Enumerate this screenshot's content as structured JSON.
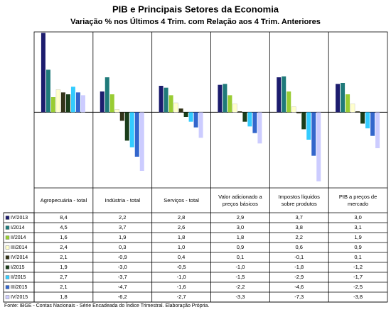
{
  "chart_data": {
    "type": "bar",
    "title": "PIB e Principais Setores da Economia",
    "subtitle": "Variação % nos Últimos 4 Trim. com Relação aos  4 Trim. Anteriores",
    "source": "Fonte: IBGE - Contas Nacionais - Série Encadeada do Índice Trimestral. Elaboração Própria.",
    "categories": [
      "Agropecuária - total",
      "Indústria - total",
      "Serviços - total",
      "Valor adicionado a preços básicos",
      "Impostos líquidos sobre produtos",
      "PIB a preços de mercado"
    ],
    "ylim": [
      -8,
      8.5
    ],
    "series": [
      {
        "name": "IV/2013",
        "color": "#1c1c6e",
        "values": [
          8.4,
          2.2,
          2.8,
          2.9,
          3.7,
          3.0
        ],
        "value_labels": [
          "8,4",
          "2,2",
          "2,8",
          "2,9",
          "3,7",
          "3,0"
        ]
      },
      {
        "name": "I/2014",
        "color": "#1f7a7a",
        "values": [
          4.5,
          3.7,
          2.6,
          3.0,
          3.8,
          3.1
        ],
        "value_labels": [
          "4,5",
          "3,7",
          "2,6",
          "3,0",
          "3,8",
          "3,1"
        ]
      },
      {
        "name": "II/2014",
        "color": "#99cc33",
        "values": [
          1.6,
          1.9,
          1.8,
          1.8,
          2.2,
          1.9
        ],
        "value_labels": [
          "1,6",
          "1,9",
          "1,8",
          "1,8",
          "2,2",
          "1,9"
        ]
      },
      {
        "name": "III/2014",
        "color": "#ffffcc",
        "values": [
          2.4,
          0.3,
          1.0,
          0.9,
          0.6,
          0.9
        ],
        "value_labels": [
          "2,4",
          "0,3",
          "1,0",
          "0,9",
          "0,6",
          "0,9"
        ]
      },
      {
        "name": "IV/2014",
        "color": "#333319",
        "values": [
          2.1,
          -0.9,
          0.4,
          0.1,
          -0.1,
          0.1
        ],
        "value_labels": [
          "2,1",
          "-0,9",
          "0,4",
          "0,1",
          "-0,1",
          "0,1"
        ]
      },
      {
        "name": "I/2015",
        "color": "#1a3d1a",
        "values": [
          1.9,
          -3.0,
          -0.5,
          -1.0,
          -1.8,
          -1.2
        ],
        "value_labels": [
          "1,9",
          "-3,0",
          "-0,5",
          "-1,0",
          "-1,8",
          "-1,2"
        ]
      },
      {
        "name": "II/2015",
        "color": "#33ccff",
        "values": [
          2.7,
          -3.7,
          -1.0,
          -1.5,
          -2.9,
          -1.7
        ],
        "value_labels": [
          "2,7",
          "-3,7",
          "-1,0",
          "-1,5",
          "-2,9",
          "-1,7"
        ]
      },
      {
        "name": "III/2015",
        "color": "#3366cc",
        "values": [
          2.1,
          -4.7,
          -1.6,
          -2.2,
          -4.6,
          -2.5
        ],
        "value_labels": [
          "2,1",
          "-4,7",
          "-1,6",
          "-2,2",
          "-4,6",
          "-2,5"
        ]
      },
      {
        "name": "IV/2015",
        "color": "#ccccff",
        "values": [
          1.8,
          -6.2,
          -2.7,
          -3.3,
          -7.3,
          -3.8
        ],
        "value_labels": [
          "1,8",
          "-6,2",
          "-2,7",
          "-3,3",
          "-7,3",
          "-3,8"
        ]
      }
    ]
  }
}
